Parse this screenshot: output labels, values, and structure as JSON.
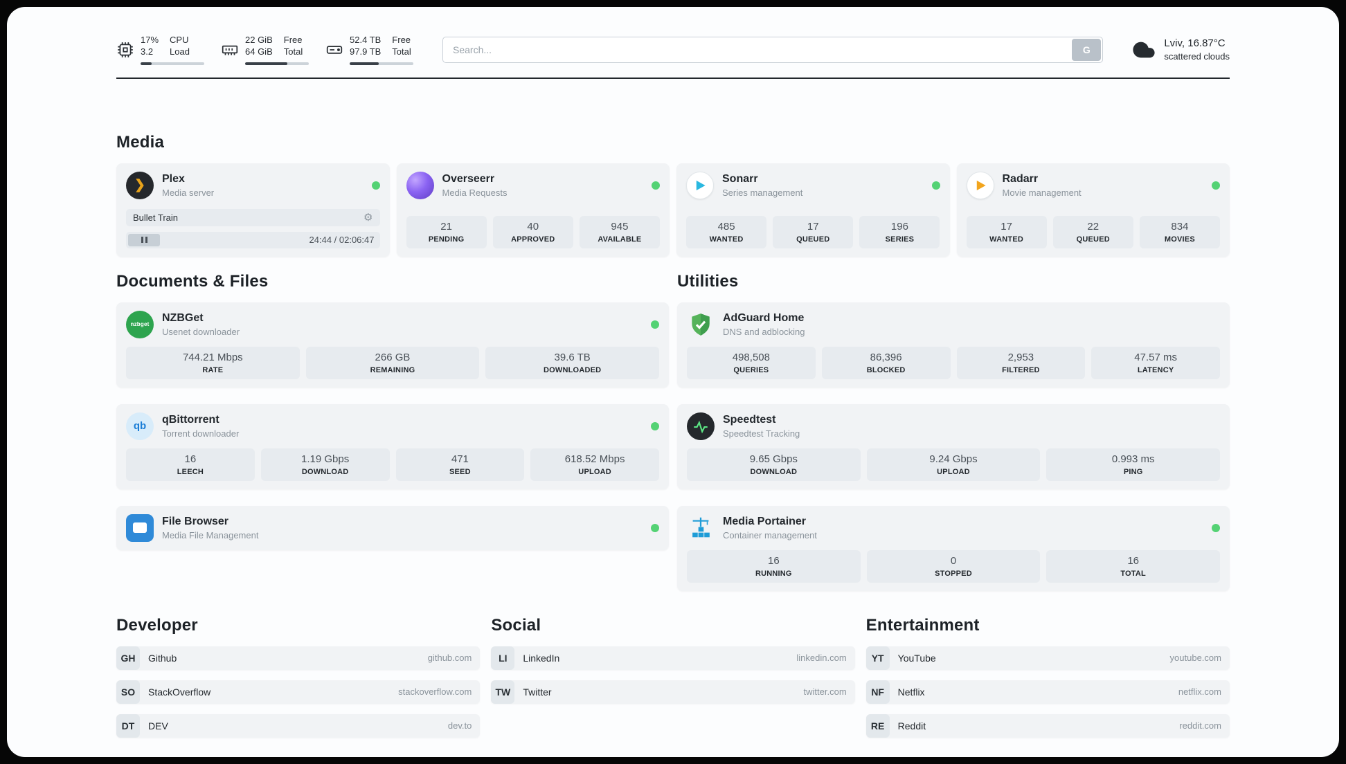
{
  "topbar": {
    "cpu": {
      "value1": "17%",
      "value2": "3.2",
      "label1": "CPU",
      "label2": "Load",
      "progress": 17
    },
    "ram": {
      "value1": "22 GiB",
      "value2": "64 GiB",
      "label1": "Free",
      "label2": "Total",
      "progress": 66
    },
    "disk": {
      "value1": "52.4 TB",
      "value2": "97.9 TB",
      "label1": "Free",
      "label2": "Total",
      "progress": 46
    },
    "search": {
      "placeholder": "Search...",
      "button_label": "G"
    },
    "weather": {
      "location": "Lviv, 16.87°C",
      "condition": "scattered clouds"
    }
  },
  "media": {
    "heading": "Media",
    "plex": {
      "title": "Plex",
      "subtitle": "Media server",
      "now_playing": "Bullet Train",
      "time": "24:44 / 02:06:47"
    },
    "overseerr": {
      "title": "Overseerr",
      "subtitle": "Media Requests",
      "stats": [
        {
          "value": "21",
          "label": "PENDING"
        },
        {
          "value": "40",
          "label": "APPROVED"
        },
        {
          "value": "945",
          "label": "AVAILABLE"
        }
      ]
    },
    "sonarr": {
      "title": "Sonarr",
      "subtitle": "Series management",
      "stats": [
        {
          "value": "485",
          "label": "WANTED"
        },
        {
          "value": "17",
          "label": "QUEUED"
        },
        {
          "value": "196",
          "label": "SERIES"
        }
      ]
    },
    "radarr": {
      "title": "Radarr",
      "subtitle": "Movie management",
      "stats": [
        {
          "value": "17",
          "label": "WANTED"
        },
        {
          "value": "22",
          "label": "QUEUED"
        },
        {
          "value": "834",
          "label": "MOVIES"
        }
      ]
    }
  },
  "documents": {
    "heading": "Documents & Files",
    "nzbget": {
      "title": "NZBGet",
      "subtitle": "Usenet downloader",
      "icon_text": "nzbget",
      "stats": [
        {
          "value": "744.21 Mbps",
          "label": "RATE"
        },
        {
          "value": "266 GB",
          "label": "REMAINING"
        },
        {
          "value": "39.6 TB",
          "label": "DOWNLOADED"
        }
      ]
    },
    "qbittorrent": {
      "title": "qBittorrent",
      "subtitle": "Torrent downloader",
      "icon_text": "qb",
      "stats": [
        {
          "value": "16",
          "label": "LEECH"
        },
        {
          "value": "1.19 Gbps",
          "label": "DOWNLOAD"
        },
        {
          "value": "471",
          "label": "SEED"
        },
        {
          "value": "618.52 Mbps",
          "label": "UPLOAD"
        }
      ]
    },
    "filebrowser": {
      "title": "File Browser",
      "subtitle": "Media File Management"
    }
  },
  "utilities": {
    "heading": "Utilities",
    "adguard": {
      "title": "AdGuard Home",
      "subtitle": "DNS and adblocking",
      "stats": [
        {
          "value": "498,508",
          "label": "QUERIES"
        },
        {
          "value": "86,396",
          "label": "BLOCKED"
        },
        {
          "value": "2,953",
          "label": "FILTERED"
        },
        {
          "value": "47.57 ms",
          "label": "LATENCY"
        }
      ]
    },
    "speedtest": {
      "title": "Speedtest",
      "subtitle": "Speedtest Tracking",
      "stats": [
        {
          "value": "9.65 Gbps",
          "label": "DOWNLOAD"
        },
        {
          "value": "9.24 Gbps",
          "label": "UPLOAD"
        },
        {
          "value": "0.993 ms",
          "label": "PING"
        }
      ]
    },
    "portainer": {
      "title": "Media Portainer",
      "subtitle": "Container management",
      "stats": [
        {
          "value": "16",
          "label": "RUNNING"
        },
        {
          "value": "0",
          "label": "STOPPED"
        },
        {
          "value": "16",
          "label": "TOTAL"
        }
      ]
    }
  },
  "bookmarks": {
    "developer": {
      "heading": "Developer",
      "items": [
        {
          "abbr": "GH",
          "name": "Github",
          "url": "github.com"
        },
        {
          "abbr": "SO",
          "name": "StackOverflow",
          "url": "stackoverflow.com"
        },
        {
          "abbr": "DT",
          "name": "DEV",
          "url": "dev.to"
        }
      ]
    },
    "social": {
      "heading": "Social",
      "items": [
        {
          "abbr": "LI",
          "name": "LinkedIn",
          "url": "linkedin.com"
        },
        {
          "abbr": "TW",
          "name": "Twitter",
          "url": "twitter.com"
        }
      ]
    },
    "entertainment": {
      "heading": "Entertainment",
      "items": [
        {
          "abbr": "YT",
          "name": "YouTube",
          "url": "youtube.com"
        },
        {
          "abbr": "NF",
          "name": "Netflix",
          "url": "netflix.com"
        },
        {
          "abbr": "RE",
          "name": "Reddit",
          "url": "reddit.com"
        }
      ]
    }
  }
}
